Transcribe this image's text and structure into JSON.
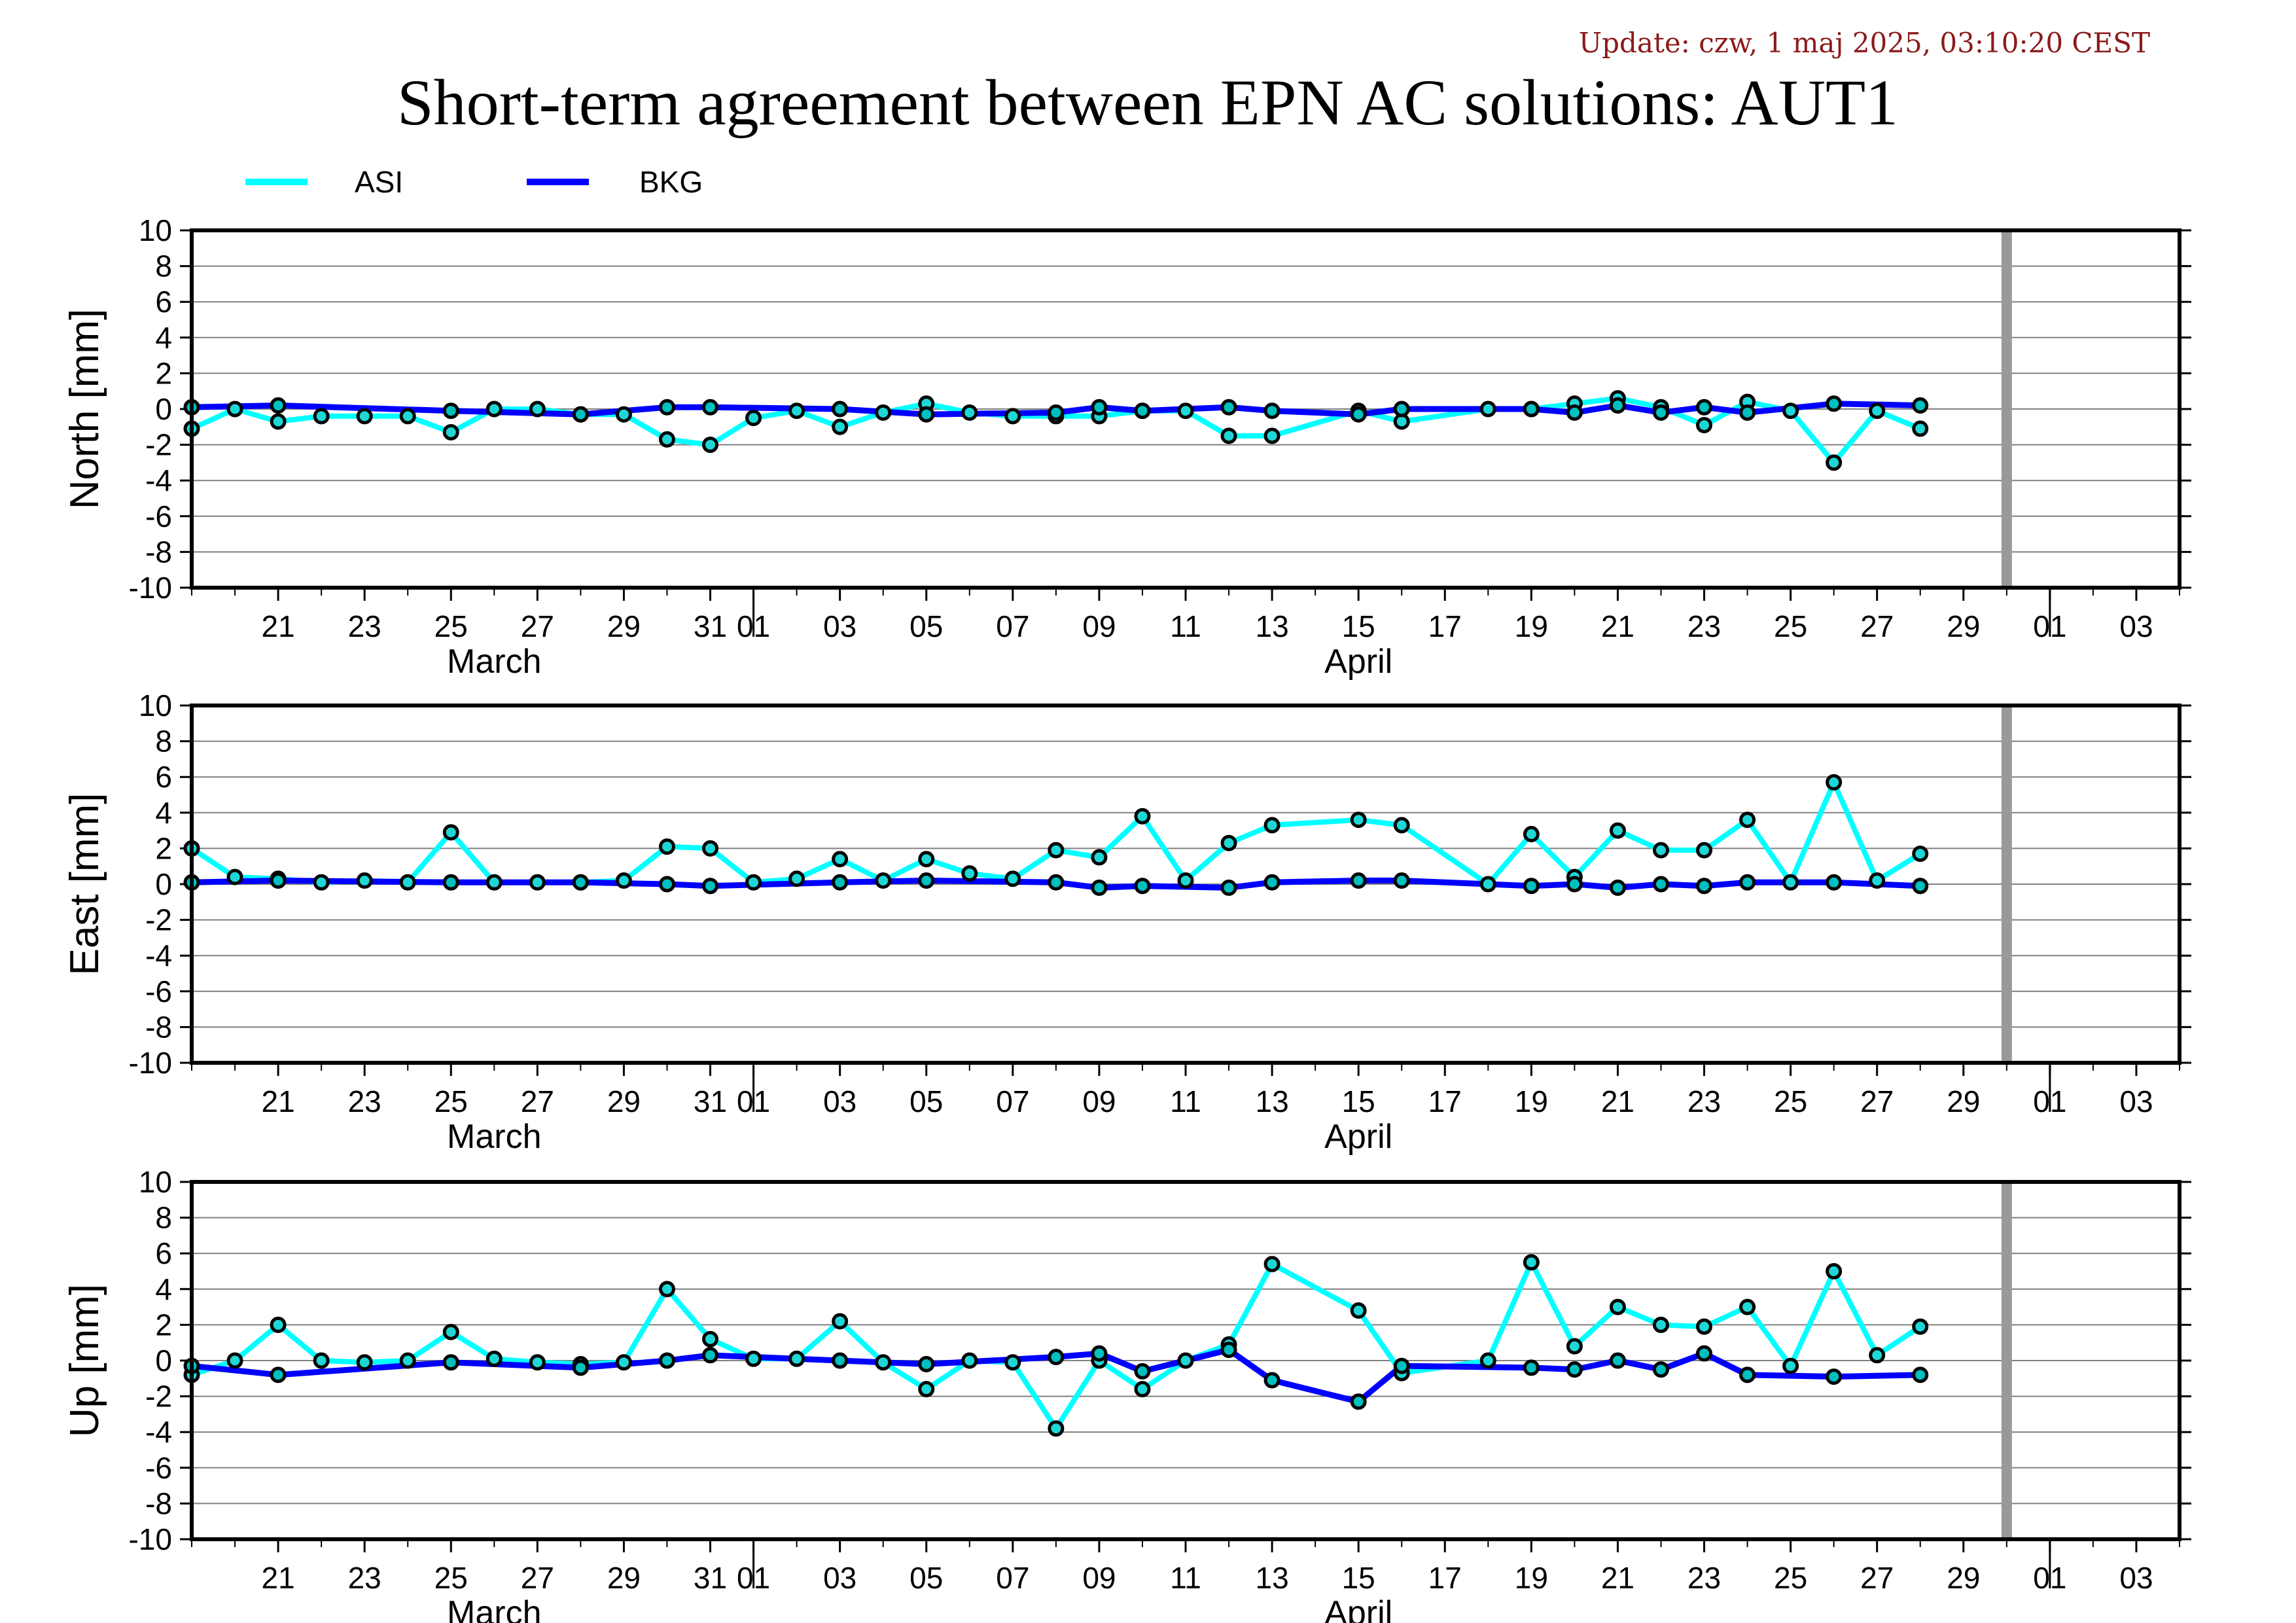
{
  "header": {
    "update": "Update: czw, 1 maj 2025, 03:10:20 CEST",
    "title": "Short-term agreement between EPN AC solutions: AUT1"
  },
  "legend": [
    {
      "name": "ASI",
      "color": "#00ffff"
    },
    {
      "name": "BKG",
      "color": "#0000ff"
    }
  ],
  "chart_data": [
    {
      "type": "line",
      "ylabel": "North [mm]",
      "ylim": [
        -10,
        10
      ],
      "yticks": [
        "10",
        "8",
        "6",
        "4",
        "2",
        "0",
        "-2",
        "-4",
        "-6",
        "-8",
        "-10"
      ],
      "x_range": [
        "2025-03-19",
        "2025-05-04"
      ],
      "x_tick_labels": [
        "21",
        "23",
        "25",
        "27",
        "29",
        "31",
        "01",
        "03",
        "05",
        "07",
        "09",
        "11",
        "13",
        "15",
        "17",
        "19",
        "21",
        "23",
        "25",
        "27",
        "29",
        "01",
        "03"
      ],
      "month_labels": [
        "March",
        "April"
      ],
      "marker_date": "2025-04-30",
      "grid": true,
      "series": [
        {
          "name": "ASI",
          "color": "#00ffff",
          "points": [
            [
              "2025-03-19",
              -1.1
            ],
            [
              "2025-03-20",
              0.0
            ],
            [
              "2025-03-21",
              -0.7
            ],
            [
              "2025-03-22",
              -0.4
            ],
            [
              "2025-03-23",
              -0.4
            ],
            [
              "2025-03-24",
              -0.4
            ],
            [
              "2025-03-25",
              -1.3
            ],
            [
              "2025-03-26",
              0.0
            ],
            [
              "2025-03-27",
              0.0
            ],
            [
              "2025-03-28",
              -0.3
            ],
            [
              "2025-03-29",
              -0.3
            ],
            [
              "2025-03-30",
              -1.7
            ],
            [
              "2025-03-31",
              -2.0
            ],
            [
              "2025-04-01",
              -0.5
            ],
            [
              "2025-04-02",
              -0.1
            ],
            [
              "2025-04-03",
              -1.0
            ],
            [
              "2025-04-04",
              -0.2
            ],
            [
              "2025-04-05",
              0.3
            ],
            [
              "2025-04-06",
              -0.2
            ],
            [
              "2025-04-07",
              -0.4
            ],
            [
              "2025-04-08",
              -0.4
            ],
            [
              "2025-04-09",
              -0.4
            ],
            [
              "2025-04-10",
              -0.1
            ],
            [
              "2025-04-11",
              -0.1
            ],
            [
              "2025-04-12",
              -1.5
            ],
            [
              "2025-04-13",
              -1.5
            ],
            [
              "2025-04-15",
              -0.1
            ],
            [
              "2025-04-16",
              -0.7
            ],
            [
              "2025-04-18",
              0.0
            ],
            [
              "2025-04-19",
              0.0
            ],
            [
              "2025-04-20",
              0.3
            ],
            [
              "2025-04-21",
              0.6
            ],
            [
              "2025-04-22",
              0.1
            ],
            [
              "2025-04-23",
              -0.9
            ],
            [
              "2025-04-24",
              0.4
            ],
            [
              "2025-04-25",
              -0.1
            ],
            [
              "2025-04-26",
              -3.0
            ],
            [
              "2025-04-27",
              -0.1
            ],
            [
              "2025-04-28",
              -1.1
            ]
          ]
        },
        {
          "name": "BKG",
          "color": "#0000ff",
          "points": [
            [
              "2025-03-19",
              0.1
            ],
            [
              "2025-03-21",
              0.2
            ],
            [
              "2025-03-25",
              -0.1
            ],
            [
              "2025-03-28",
              -0.3
            ],
            [
              "2025-03-30",
              0.1
            ],
            [
              "2025-03-31",
              0.1
            ],
            [
              "2025-04-03",
              0.0
            ],
            [
              "2025-04-05",
              -0.3
            ],
            [
              "2025-04-08",
              -0.2
            ],
            [
              "2025-04-09",
              0.1
            ],
            [
              "2025-04-10",
              -0.1
            ],
            [
              "2025-04-12",
              0.1
            ],
            [
              "2025-04-13",
              -0.1
            ],
            [
              "2025-04-15",
              -0.3
            ],
            [
              "2025-04-16",
              0.0
            ],
            [
              "2025-04-19",
              0.0
            ],
            [
              "2025-04-20",
              -0.2
            ],
            [
              "2025-04-21",
              0.2
            ],
            [
              "2025-04-22",
              -0.2
            ],
            [
              "2025-04-23",
              0.1
            ],
            [
              "2025-04-24",
              -0.2
            ],
            [
              "2025-04-26",
              0.3
            ],
            [
              "2025-04-28",
              0.2
            ]
          ]
        }
      ]
    },
    {
      "type": "line",
      "ylabel": "East [mm]",
      "ylim": [
        -10,
        10
      ],
      "yticks": [
        "10",
        "8",
        "6",
        "4",
        "2",
        "0",
        "-2",
        "-4",
        "-6",
        "-8",
        "-10"
      ],
      "x_range": [
        "2025-03-19",
        "2025-05-04"
      ],
      "x_tick_labels": [
        "21",
        "23",
        "25",
        "27",
        "29",
        "31",
        "01",
        "03",
        "05",
        "07",
        "09",
        "11",
        "13",
        "15",
        "17",
        "19",
        "21",
        "23",
        "25",
        "27",
        "29",
        "01",
        "03"
      ],
      "month_labels": [
        "March",
        "April"
      ],
      "marker_date": "2025-04-30",
      "grid": true,
      "series": [
        {
          "name": "ASI",
          "color": "#00ffff",
          "points": [
            [
              "2025-03-19",
              2.0
            ],
            [
              "2025-03-20",
              0.4
            ],
            [
              "2025-03-21",
              0.3
            ],
            [
              "2025-03-22",
              0.1
            ],
            [
              "2025-03-23",
              0.2
            ],
            [
              "2025-03-24",
              0.1
            ],
            [
              "2025-03-25",
              2.9
            ],
            [
              "2025-03-26",
              0.1
            ],
            [
              "2025-03-27",
              0.1
            ],
            [
              "2025-03-28",
              0.1
            ],
            [
              "2025-03-29",
              0.2
            ],
            [
              "2025-03-30",
              2.1
            ],
            [
              "2025-03-31",
              2.0
            ],
            [
              "2025-04-01",
              0.1
            ],
            [
              "2025-04-02",
              0.3
            ],
            [
              "2025-04-03",
              1.4
            ],
            [
              "2025-04-04",
              0.2
            ],
            [
              "2025-04-05",
              1.4
            ],
            [
              "2025-04-06",
              0.6
            ],
            [
              "2025-04-07",
              0.3
            ],
            [
              "2025-04-08",
              1.9
            ],
            [
              "2025-04-09",
              1.5
            ],
            [
              "2025-04-10",
              3.8
            ],
            [
              "2025-04-11",
              0.2
            ],
            [
              "2025-04-12",
              2.3
            ],
            [
              "2025-04-13",
              3.3
            ],
            [
              "2025-04-15",
              3.6
            ],
            [
              "2025-04-16",
              3.3
            ],
            [
              "2025-04-18",
              0.0
            ],
            [
              "2025-04-19",
              2.8
            ],
            [
              "2025-04-20",
              0.4
            ],
            [
              "2025-04-21",
              3.0
            ],
            [
              "2025-04-22",
              1.9
            ],
            [
              "2025-04-23",
              1.9
            ],
            [
              "2025-04-24",
              3.6
            ],
            [
              "2025-04-25",
              0.1
            ],
            [
              "2025-04-26",
              5.7
            ],
            [
              "2025-04-27",
              0.2
            ],
            [
              "2025-04-28",
              1.7
            ]
          ]
        },
        {
          "name": "BKG",
          "color": "#0000ff",
          "points": [
            [
              "2025-03-19",
              0.1
            ],
            [
              "2025-03-21",
              0.2
            ],
            [
              "2025-03-25",
              0.1
            ],
            [
              "2025-03-28",
              0.1
            ],
            [
              "2025-03-30",
              0.0
            ],
            [
              "2025-03-31",
              -0.1
            ],
            [
              "2025-04-03",
              0.1
            ],
            [
              "2025-04-05",
              0.2
            ],
            [
              "2025-04-08",
              0.1
            ],
            [
              "2025-04-09",
              -0.2
            ],
            [
              "2025-04-10",
              -0.1
            ],
            [
              "2025-04-12",
              -0.2
            ],
            [
              "2025-04-13",
              0.1
            ],
            [
              "2025-04-15",
              0.2
            ],
            [
              "2025-04-16",
              0.2
            ],
            [
              "2025-04-19",
              -0.1
            ],
            [
              "2025-04-20",
              0.0
            ],
            [
              "2025-04-21",
              -0.2
            ],
            [
              "2025-04-22",
              0.0
            ],
            [
              "2025-04-23",
              -0.1
            ],
            [
              "2025-04-24",
              0.1
            ],
            [
              "2025-04-26",
              0.1
            ],
            [
              "2025-04-28",
              -0.1
            ]
          ]
        }
      ]
    },
    {
      "type": "line",
      "ylabel": "Up [mm]",
      "ylim": [
        -10,
        10
      ],
      "yticks": [
        "10",
        "8",
        "6",
        "4",
        "2",
        "0",
        "-2",
        "-4",
        "-6",
        "-8",
        "-10"
      ],
      "x_range": [
        "2025-03-19",
        "2025-05-04"
      ],
      "x_tick_labels": [
        "21",
        "23",
        "25",
        "27",
        "29",
        "31",
        "01",
        "03",
        "05",
        "07",
        "09",
        "11",
        "13",
        "15",
        "17",
        "19",
        "21",
        "23",
        "25",
        "27",
        "29",
        "01",
        "03"
      ],
      "month_labels": [
        "March",
        "April"
      ],
      "marker_date": "2025-04-30",
      "grid": true,
      "series": [
        {
          "name": "ASI",
          "color": "#00ffff",
          "points": [
            [
              "2025-03-19",
              -0.8
            ],
            [
              "2025-03-20",
              0.0
            ],
            [
              "2025-03-21",
              2.0
            ],
            [
              "2025-03-22",
              0.0
            ],
            [
              "2025-03-23",
              -0.1
            ],
            [
              "2025-03-24",
              0.0
            ],
            [
              "2025-03-25",
              1.6
            ],
            [
              "2025-03-26",
              0.1
            ],
            [
              "2025-03-27",
              -0.1
            ],
            [
              "2025-03-28",
              -0.2
            ],
            [
              "2025-03-29",
              -0.1
            ],
            [
              "2025-03-30",
              4.0
            ],
            [
              "2025-03-31",
              1.2
            ],
            [
              "2025-04-01",
              0.1
            ],
            [
              "2025-04-02",
              0.1
            ],
            [
              "2025-04-03",
              2.2
            ],
            [
              "2025-04-04",
              -0.1
            ],
            [
              "2025-04-05",
              -1.6
            ],
            [
              "2025-04-06",
              0.0
            ],
            [
              "2025-04-07",
              -0.1
            ],
            [
              "2025-04-08",
              -3.8
            ],
            [
              "2025-04-09",
              0.0
            ],
            [
              "2025-04-10",
              -1.6
            ],
            [
              "2025-04-11",
              0.0
            ],
            [
              "2025-04-12",
              0.9
            ],
            [
              "2025-04-13",
              5.4
            ],
            [
              "2025-04-15",
              2.8
            ],
            [
              "2025-04-16",
              -0.7
            ],
            [
              "2025-04-18",
              0.0
            ],
            [
              "2025-04-19",
              5.5
            ],
            [
              "2025-04-20",
              0.8
            ],
            [
              "2025-04-21",
              3.0
            ],
            [
              "2025-04-22",
              2.0
            ],
            [
              "2025-04-23",
              1.9
            ],
            [
              "2025-04-24",
              3.0
            ],
            [
              "2025-04-25",
              -0.3
            ],
            [
              "2025-04-26",
              5.0
            ],
            [
              "2025-04-27",
              0.3
            ],
            [
              "2025-04-28",
              1.9
            ]
          ]
        },
        {
          "name": "BKG",
          "color": "#0000ff",
          "points": [
            [
              "2025-03-19",
              -0.3
            ],
            [
              "2025-03-21",
              -0.8
            ],
            [
              "2025-03-25",
              -0.1
            ],
            [
              "2025-03-28",
              -0.4
            ],
            [
              "2025-03-30",
              0.0
            ],
            [
              "2025-03-31",
              0.3
            ],
            [
              "2025-04-03",
              0.0
            ],
            [
              "2025-04-05",
              -0.2
            ],
            [
              "2025-04-08",
              0.2
            ],
            [
              "2025-04-09",
              0.4
            ],
            [
              "2025-04-10",
              -0.6
            ],
            [
              "2025-04-12",
              0.6
            ],
            [
              "2025-04-13",
              -1.1
            ],
            [
              "2025-04-15",
              -2.3
            ],
            [
              "2025-04-16",
              -0.3
            ],
            [
              "2025-04-19",
              -0.4
            ],
            [
              "2025-04-20",
              -0.5
            ],
            [
              "2025-04-21",
              0.0
            ],
            [
              "2025-04-22",
              -0.5
            ],
            [
              "2025-04-23",
              0.4
            ],
            [
              "2025-04-24",
              -0.8
            ],
            [
              "2025-04-26",
              -0.9
            ],
            [
              "2025-04-28",
              -0.8
            ]
          ]
        }
      ]
    }
  ]
}
